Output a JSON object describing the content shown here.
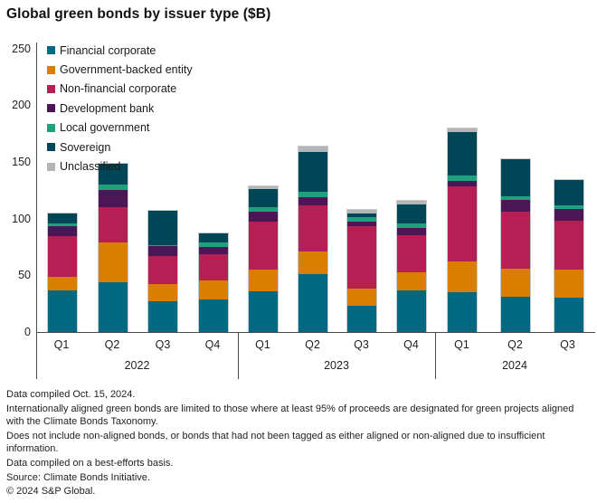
{
  "title": "Global green bonds by issuer type ($B)",
  "chart_data": {
    "type": "bar",
    "stacked": true,
    "unit": "$B",
    "title": "Global green bonds by issuer type ($B)",
    "ylim": [
      0,
      250
    ],
    "yticks": [
      0,
      50,
      100,
      150,
      200,
      250
    ],
    "grid": false,
    "legend_position": "top-left-inside",
    "groups": [
      {
        "year": "2022",
        "quarters": [
          "Q1",
          "Q2",
          "Q3",
          "Q4"
        ]
      },
      {
        "year": "2023",
        "quarters": [
          "Q1",
          "Q2",
          "Q3",
          "Q4"
        ]
      },
      {
        "year": "2024",
        "quarters": [
          "Q1",
          "Q2",
          "Q3"
        ]
      }
    ],
    "categories": [
      "Q1 2022",
      "Q2 2022",
      "Q3 2022",
      "Q4 2022",
      "Q1 2023",
      "Q2 2023",
      "Q3 2023",
      "Q4 2023",
      "Q1 2024",
      "Q2 2024",
      "Q3 2024"
    ],
    "series": [
      {
        "name": "Financial corporate",
        "color": "#006880",
        "values": [
          37,
          44,
          27,
          29,
          36,
          51,
          23,
          37,
          35,
          31,
          30
        ]
      },
      {
        "name": "Government-backed entity",
        "color": "#d97e00",
        "values": [
          12,
          35,
          15,
          17,
          19,
          20,
          15,
          16,
          27,
          25,
          25
        ]
      },
      {
        "name": "Non-financial corporate",
        "color": "#b61e54",
        "values": [
          36,
          31,
          25,
          23,
          42,
          41,
          55,
          33,
          66,
          50,
          43
        ]
      },
      {
        "name": "Development bank",
        "color": "#4b1656",
        "values": [
          9,
          15,
          9,
          6,
          9,
          7,
          4,
          6,
          5,
          10,
          10
        ]
      },
      {
        "name": "Local government",
        "color": "#1fa17d",
        "values": [
          2,
          5,
          1,
          4,
          4,
          5,
          4,
          4,
          5,
          3,
          3
        ]
      },
      {
        "name": "Sovereign",
        "color": "#004656",
        "values": [
          9,
          18,
          30,
          8,
          16,
          35,
          3,
          17,
          38,
          33,
          22
        ]
      },
      {
        "name": "Unclassified",
        "color": "#b3b5b7",
        "values": [
          0,
          0,
          0,
          0,
          2,
          5,
          3,
          3,
          3,
          0,
          0
        ]
      }
    ],
    "totals": [
      105,
      148,
      107,
      87,
      128,
      164,
      107,
      116,
      179,
      152,
      133
    ]
  },
  "footnotes": [
    "Data compiled Oct. 15, 2024.",
    "Internationally aligned green bonds are limited to those where at least 95% of proceeds are designated for green projects aligned with the Climate Bonds Taxonomy.",
    "Does not include non-aligned bonds, or bonds that had not been tagged as either aligned or non-aligned due to insufficient information.",
    "Data compiled on a best-efforts basis.",
    "Source: Climate Bonds Initiative.",
    "© 2024 S&P Global."
  ],
  "colors": {
    "axis": "#4a4a4a",
    "text": "#1a1a1a",
    "bar_outline": "#c6cacd"
  }
}
